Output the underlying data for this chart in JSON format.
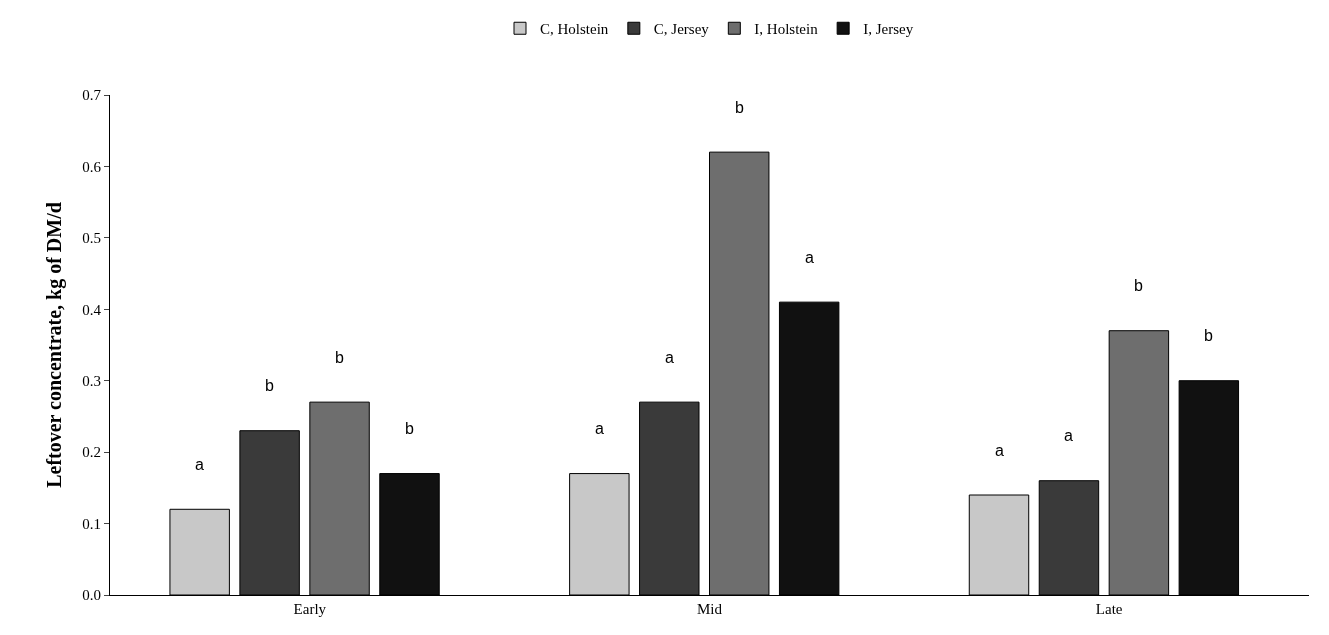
{
  "chart_data": {
    "type": "bar",
    "ylabel": "Leftover concentrate, kg of DM/d",
    "categories": [
      "Early",
      "Mid",
      "Late"
    ],
    "series": [
      {
        "name": "C, Holstein",
        "color": "#c8c8c8",
        "values": [
          0.12,
          0.17,
          0.14
        ]
      },
      {
        "name": "C, Jersey",
        "color": "#3a3a3a",
        "values": [
          0.23,
          0.27,
          0.16
        ]
      },
      {
        "name": "I, Holstein",
        "color": "#6e6e6e",
        "values": [
          0.27,
          0.62,
          0.37
        ]
      },
      {
        "name": "I, Jersey",
        "color": "#111111",
        "values": [
          0.17,
          0.41,
          0.3
        ]
      }
    ],
    "ylim": [
      0,
      0.7
    ],
    "yticks": [
      {
        "value": 0,
        "label": "0.0"
      },
      0.1,
      0.2,
      0.3,
      0.4,
      0.5,
      0.6,
      0.7
    ],
    "legend": "top",
    "annotations": [
      "a",
      "b",
      "b",
      "b",
      "a",
      "a",
      "b",
      "a",
      "a",
      "a",
      "b",
      "b"
    ]
  }
}
